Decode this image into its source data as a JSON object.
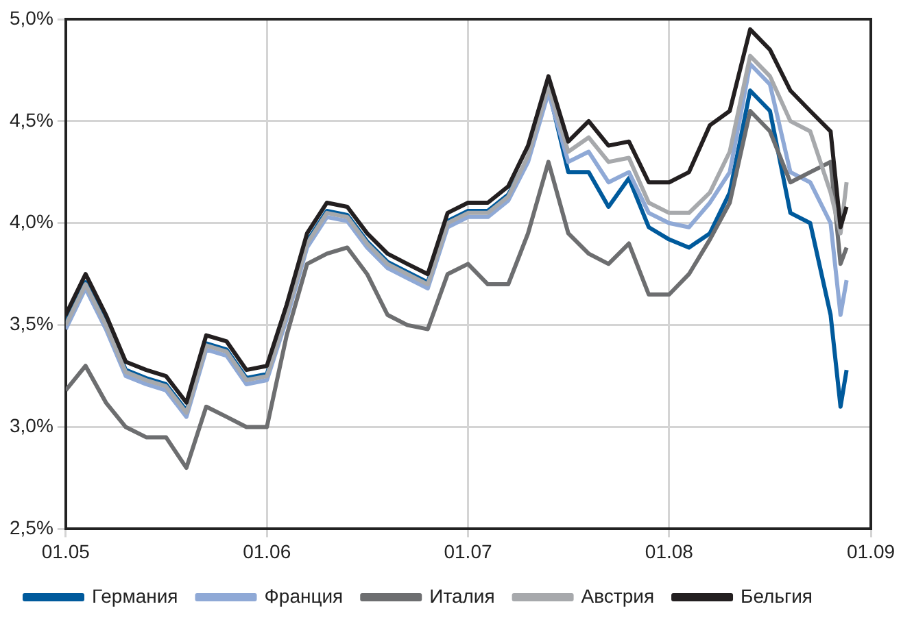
{
  "chart_data": {
    "type": "line",
    "x": [
      "2005-01-01",
      "2005-02-06",
      "2005-03-15",
      "2005-04-20",
      "2005-05-27",
      "2005-07-02",
      "2005-08-08",
      "2005-09-13",
      "2005-10-20",
      "2005-11-25",
      "2006-01-01",
      "2006-02-06",
      "2006-03-15",
      "2006-04-20",
      "2006-05-27",
      "2006-07-02",
      "2006-08-08",
      "2006-09-13",
      "2006-10-20",
      "2006-11-25",
      "2007-01-01",
      "2007-02-06",
      "2007-03-15",
      "2007-04-20",
      "2007-05-27",
      "2007-07-02",
      "2007-08-08",
      "2007-09-13",
      "2007-10-20",
      "2007-11-25",
      "2008-01-01",
      "2008-02-06",
      "2008-03-15",
      "2008-04-20",
      "2008-05-27",
      "2008-07-02",
      "2008-08-08",
      "2008-09-13",
      "2008-10-20",
      "2008-11-07",
      "2008-11-18"
    ],
    "series": [
      {
        "name": "Германия",
        "color": "#005a9c",
        "values": [
          3.51,
          3.71,
          3.51,
          3.28,
          3.24,
          3.21,
          3.08,
          3.41,
          3.38,
          3.24,
          3.26,
          3.56,
          3.91,
          4.06,
          4.04,
          3.91,
          3.81,
          3.76,
          3.71,
          4.01,
          4.06,
          4.06,
          4.14,
          4.32,
          4.66,
          4.25,
          4.25,
          4.08,
          4.22,
          3.98,
          3.92,
          3.88,
          3.95,
          4.15,
          4.65,
          4.55,
          4.05,
          4.0,
          3.55,
          3.1,
          3.28
        ]
      },
      {
        "name": "Франция",
        "color": "#8fa9d6",
        "values": [
          3.48,
          3.68,
          3.48,
          3.25,
          3.21,
          3.18,
          3.05,
          3.38,
          3.35,
          3.21,
          3.23,
          3.53,
          3.88,
          4.03,
          4.01,
          3.88,
          3.78,
          3.73,
          3.68,
          3.98,
          4.03,
          4.03,
          4.11,
          4.3,
          4.64,
          4.3,
          4.35,
          4.2,
          4.25,
          4.05,
          4.0,
          3.98,
          4.1,
          4.25,
          4.78,
          4.68,
          4.25,
          4.2,
          4.0,
          3.55,
          3.72
        ]
      },
      {
        "name": "Италия",
        "color": "#6d6e70",
        "values": [
          3.18,
          3.3,
          3.12,
          3.0,
          2.95,
          2.95,
          2.8,
          3.1,
          3.05,
          3.0,
          3.0,
          3.45,
          3.8,
          3.85,
          3.88,
          3.75,
          3.55,
          3.5,
          3.48,
          3.75,
          3.8,
          3.7,
          3.7,
          3.95,
          4.3,
          3.95,
          3.85,
          3.8,
          3.9,
          3.65,
          3.65,
          3.75,
          3.92,
          4.1,
          4.55,
          4.45,
          4.2,
          4.25,
          4.3,
          3.8,
          3.88
        ]
      },
      {
        "name": "Австрия",
        "color": "#a7a9ac",
        "values": [
          3.5,
          3.7,
          3.5,
          3.27,
          3.23,
          3.2,
          3.07,
          3.4,
          3.37,
          3.23,
          3.25,
          3.55,
          3.9,
          4.05,
          4.03,
          3.9,
          3.8,
          3.75,
          3.7,
          4.0,
          4.05,
          4.05,
          4.13,
          4.33,
          4.67,
          4.35,
          4.42,
          4.3,
          4.32,
          4.1,
          4.05,
          4.05,
          4.15,
          4.35,
          4.82,
          4.72,
          4.5,
          4.45,
          4.15,
          3.95,
          4.2
        ]
      },
      {
        "name": "Бельгия",
        "color": "#231f20",
        "values": [
          3.55,
          3.75,
          3.55,
          3.32,
          3.28,
          3.25,
          3.12,
          3.45,
          3.42,
          3.28,
          3.3,
          3.6,
          3.95,
          4.1,
          4.08,
          3.95,
          3.85,
          3.8,
          3.75,
          4.05,
          4.1,
          4.1,
          4.18,
          4.38,
          4.72,
          4.4,
          4.5,
          4.38,
          4.4,
          4.2,
          4.2,
          4.25,
          4.48,
          4.55,
          4.95,
          4.85,
          4.65,
          4.55,
          4.45,
          3.98,
          4.08
        ]
      }
    ],
    "xlim": [
      "2005-01-01",
      "2009-01-01"
    ],
    "xticks": [
      {
        "value": "2005-01",
        "label": "01.05"
      },
      {
        "value": "2006-01",
        "label": "01.06"
      },
      {
        "value": "2007-01",
        "label": "01.07"
      },
      {
        "value": "2008-01",
        "label": "01.08"
      },
      {
        "value": "2009-01",
        "label": "01.09"
      }
    ],
    "ylim": [
      2.5,
      5
    ],
    "yticks": [
      {
        "value": 2.5,
        "label": "2,5%"
      },
      {
        "value": 3,
        "label": "3,0%"
      },
      {
        "value": 3.5,
        "label": "3,5%"
      },
      {
        "value": 4,
        "label": "4,0%"
      },
      {
        "value": 4.5,
        "label": "4,5%"
      },
      {
        "value": 5,
        "label": "5,0%"
      }
    ],
    "grid": true,
    "legend": "bottom",
    "marker": "none",
    "line_style": "solid"
  }
}
